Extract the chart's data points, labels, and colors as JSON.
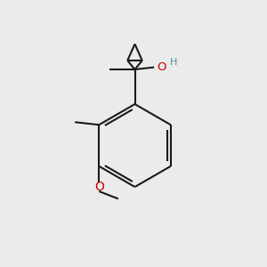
{
  "bg_color": "#ebebeb",
  "line_color": "#1a1a1a",
  "bond_lw": 1.5,
  "OH_H_color": "#4a9090",
  "O_color": "#cc0000",
  "figsize": [
    3.0,
    3.0
  ],
  "dpi": 100,
  "xlim": [
    0,
    10
  ],
  "ylim": [
    0,
    10
  ]
}
